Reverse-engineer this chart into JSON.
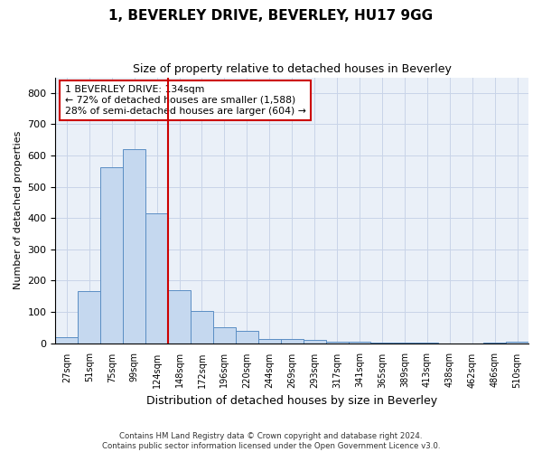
{
  "title": "1, BEVERLEY DRIVE, BEVERLEY, HU17 9GG",
  "subtitle": "Size of property relative to detached houses in Beverley",
  "xlabel": "Distribution of detached houses by size in Beverley",
  "ylabel": "Number of detached properties",
  "categories": [
    "27sqm",
    "51sqm",
    "75sqm",
    "99sqm",
    "124sqm",
    "148sqm",
    "172sqm",
    "196sqm",
    "220sqm",
    "244sqm",
    "269sqm",
    "293sqm",
    "317sqm",
    "341sqm",
    "365sqm",
    "389sqm",
    "413sqm",
    "438sqm",
    "462sqm",
    "486sqm",
    "510sqm"
  ],
  "values": [
    18,
    165,
    562,
    620,
    415,
    170,
    102,
    50,
    40,
    12,
    12,
    10,
    5,
    5,
    3,
    2,
    2,
    0,
    0,
    3,
    5
  ],
  "bar_color": "#c5d8ef",
  "bar_edge_color": "#5b8ec4",
  "vline_color": "#cc0000",
  "annotation_text": "1 BEVERLEY DRIVE: 134sqm\n← 72% of detached houses are smaller (1,588)\n28% of semi-detached houses are larger (604) →",
  "annotation_box_color": "#ffffff",
  "annotation_box_edge": "#cc0000",
  "ylim": [
    0,
    850
  ],
  "yticks": [
    0,
    100,
    200,
    300,
    400,
    500,
    600,
    700,
    800
  ],
  "footer": "Contains HM Land Registry data © Crown copyright and database right 2024.\nContains public sector information licensed under the Open Government Licence v3.0.",
  "grid_color": "#c8d4e8",
  "background_color": "#eaf0f8"
}
